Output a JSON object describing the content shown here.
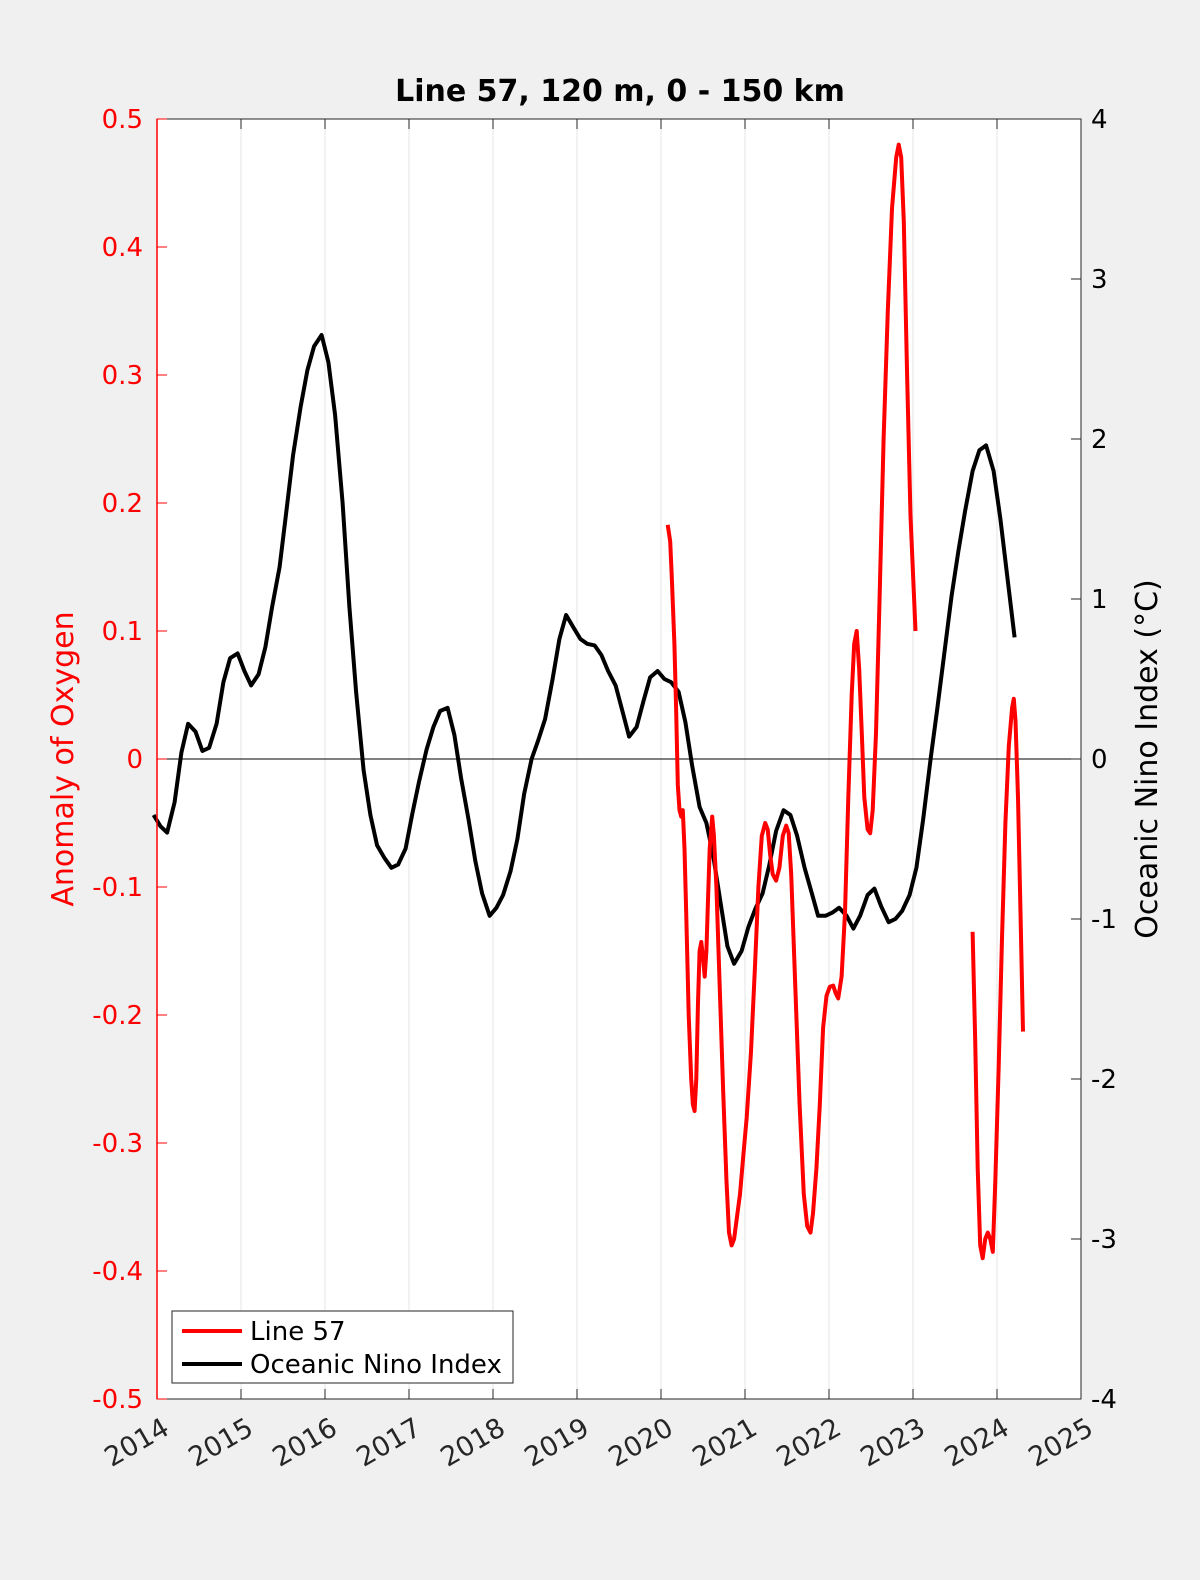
{
  "chart_data": {
    "type": "line",
    "title": "Line 57, 120 m, 0 - 150 km",
    "xlabel": "",
    "xlim": [
      2014,
      2025
    ],
    "xticks": [
      2014,
      2015,
      2016,
      2017,
      2018,
      2019,
      2020,
      2021,
      2022,
      2023,
      2024,
      2025
    ],
    "xtick_labels": [
      "2014",
      "2015",
      "2016",
      "2017",
      "2018",
      "2019",
      "2020",
      "2021",
      "2022",
      "2023",
      "2024",
      "2025"
    ],
    "ylabel_left": "Anomaly of Oxygen",
    "ylim_left": [
      -0.5,
      0.5
    ],
    "yticks_left": [
      -0.5,
      -0.4,
      -0.3,
      -0.2,
      -0.1,
      0,
      0.1,
      0.2,
      0.3,
      0.4,
      0.5
    ],
    "ytick_labels_left": [
      "-0.5",
      "-0.4",
      "-0.3",
      "-0.2",
      "-0.1",
      "0",
      "0.1",
      "0.2",
      "0.3",
      "0.4",
      "0.5"
    ],
    "ylabel_right": "Oceanic Nino Index (°C)",
    "ylim_right": [
      -4,
      4
    ],
    "yticks_right": [
      -4,
      -3,
      -2,
      -1,
      0,
      1,
      2,
      3,
      4
    ],
    "ytick_labels_right": [
      "-4",
      "-3",
      "-2",
      "-1",
      "0",
      "1",
      "2",
      "3",
      "4"
    ],
    "grid_x": true,
    "zero_line": true,
    "legend_position": "bottom-left",
    "series": [
      {
        "name": "Line 57",
        "axis": "left",
        "color": "#ff0000",
        "segments": [
          [
            [
              2020.08,
              0.183
            ],
            [
              2020.11,
              0.17
            ],
            [
              2020.13,
              0.14
            ],
            [
              2020.16,
              0.09
            ],
            [
              2020.18,
              0.04
            ],
            [
              2020.2,
              -0.02
            ],
            [
              2020.22,
              -0.04
            ],
            [
              2020.24,
              -0.045
            ],
            [
              2020.26,
              -0.04
            ],
            [
              2020.28,
              -0.07
            ],
            [
              2020.3,
              -0.12
            ],
            [
              2020.33,
              -0.2
            ],
            [
              2020.36,
              -0.25
            ],
            [
              2020.38,
              -0.27
            ],
            [
              2020.4,
              -0.275
            ],
            [
              2020.42,
              -0.25
            ],
            [
              2020.44,
              -0.19
            ],
            [
              2020.46,
              -0.15
            ],
            [
              2020.48,
              -0.143
            ],
            [
              2020.5,
              -0.155
            ],
            [
              2020.52,
              -0.17
            ],
            [
              2020.54,
              -0.15
            ],
            [
              2020.56,
              -0.11
            ],
            [
              2020.58,
              -0.07
            ],
            [
              2020.61,
              -0.045
            ],
            [
              2020.63,
              -0.06
            ],
            [
              2020.66,
              -0.1
            ],
            [
              2020.7,
              -0.18
            ],
            [
              2020.74,
              -0.26
            ],
            [
              2020.78,
              -0.33
            ],
            [
              2020.81,
              -0.37
            ],
            [
              2020.84,
              -0.38
            ],
            [
              2020.87,
              -0.375
            ],
            [
              2020.9,
              -0.36
            ],
            [
              2020.94,
              -0.34
            ],
            [
              2020.98,
              -0.31
            ],
            [
              2021.02,
              -0.28
            ],
            [
              2021.07,
              -0.23
            ],
            [
              2021.12,
              -0.16
            ],
            [
              2021.16,
              -0.1
            ],
            [
              2021.2,
              -0.06
            ],
            [
              2021.24,
              -0.05
            ],
            [
              2021.27,
              -0.055
            ],
            [
              2021.3,
              -0.075
            ],
            [
              2021.33,
              -0.09
            ],
            [
              2021.37,
              -0.095
            ],
            [
              2021.41,
              -0.085
            ],
            [
              2021.45,
              -0.06
            ],
            [
              2021.49,
              -0.052
            ],
            [
              2021.52,
              -0.058
            ],
            [
              2021.55,
              -0.09
            ],
            [
              2021.6,
              -0.18
            ],
            [
              2021.65,
              -0.27
            ],
            [
              2021.7,
              -0.34
            ],
            [
              2021.74,
              -0.365
            ],
            [
              2021.78,
              -0.37
            ],
            [
              2021.81,
              -0.355
            ],
            [
              2021.85,
              -0.32
            ],
            [
              2021.89,
              -0.27
            ],
            [
              2021.93,
              -0.21
            ],
            [
              2021.97,
              -0.185
            ],
            [
              2022.01,
              -0.178
            ],
            [
              2022.05,
              -0.177
            ],
            [
              2022.08,
              -0.183
            ],
            [
              2022.11,
              -0.187
            ],
            [
              2022.15,
              -0.17
            ],
            [
              2022.19,
              -0.12
            ],
            [
              2022.23,
              -0.03
            ],
            [
              2022.27,
              0.05
            ],
            [
              2022.3,
              0.09
            ],
            [
              2022.33,
              0.1
            ],
            [
              2022.36,
              0.07
            ],
            [
              2022.39,
              0.02
            ],
            [
              2022.42,
              -0.03
            ],
            [
              2022.46,
              -0.055
            ],
            [
              2022.49,
              -0.058
            ],
            [
              2022.52,
              -0.04
            ],
            [
              2022.56,
              0.02
            ],
            [
              2022.6,
              0.12
            ],
            [
              2022.65,
              0.25
            ],
            [
              2022.7,
              0.35
            ],
            [
              2022.75,
              0.43
            ],
            [
              2022.8,
              0.47
            ],
            [
              2022.83,
              0.48
            ],
            [
              2022.86,
              0.47
            ],
            [
              2022.89,
              0.42
            ],
            [
              2022.93,
              0.3
            ],
            [
              2022.97,
              0.19
            ],
            [
              2023.03,
              0.1
            ]
          ],
          [
            [
              2023.71,
              -0.135
            ],
            [
              2023.74,
              -0.22
            ],
            [
              2023.77,
              -0.32
            ],
            [
              2023.8,
              -0.38
            ],
            [
              2023.83,
              -0.39
            ],
            [
              2023.86,
              -0.375
            ],
            [
              2023.89,
              -0.37
            ],
            [
              2023.92,
              -0.375
            ],
            [
              2023.95,
              -0.385
            ],
            [
              2023.98,
              -0.33
            ],
            [
              2024.02,
              -0.24
            ],
            [
              2024.06,
              -0.14
            ],
            [
              2024.1,
              -0.05
            ],
            [
              2024.14,
              0.01
            ],
            [
              2024.18,
              0.04
            ],
            [
              2024.2,
              0.047
            ],
            [
              2024.22,
              0.03
            ],
            [
              2024.25,
              -0.03
            ],
            [
              2024.28,
              -0.12
            ],
            [
              2024.31,
              -0.213
            ]
          ]
        ]
      },
      {
        "name": "Oceanic Nino Index",
        "axis": "right",
        "color": "#000000",
        "segments": [
          [
            [
              2013.96,
              -0.35
            ],
            [
              2014.04,
              -0.42
            ],
            [
              2014.12,
              -0.46
            ],
            [
              2014.21,
              -0.27
            ],
            [
              2014.29,
              0.04
            ],
            [
              2014.37,
              0.22
            ],
            [
              2014.46,
              0.17
            ],
            [
              2014.54,
              0.05
            ],
            [
              2014.62,
              0.07
            ],
            [
              2014.71,
              0.22
            ],
            [
              2014.79,
              0.48
            ],
            [
              2014.87,
              0.63
            ],
            [
              2014.96,
              0.66
            ],
            [
              2015.04,
              0.55
            ],
            [
              2015.12,
              0.46
            ],
            [
              2015.21,
              0.53
            ],
            [
              2015.29,
              0.7
            ],
            [
              2015.37,
              0.95
            ],
            [
              2015.46,
              1.2
            ],
            [
              2015.54,
              1.55
            ],
            [
              2015.62,
              1.9
            ],
            [
              2015.71,
              2.2
            ],
            [
              2015.79,
              2.43
            ],
            [
              2015.87,
              2.58
            ],
            [
              2015.96,
              2.65
            ],
            [
              2016.04,
              2.48
            ],
            [
              2016.12,
              2.15
            ],
            [
              2016.21,
              1.6
            ],
            [
              2016.29,
              0.95
            ],
            [
              2016.37,
              0.42
            ],
            [
              2016.46,
              -0.07
            ],
            [
              2016.54,
              -0.35
            ],
            [
              2016.62,
              -0.54
            ],
            [
              2016.71,
              -0.62
            ],
            [
              2016.79,
              -0.68
            ],
            [
              2016.87,
              -0.66
            ],
            [
              2016.96,
              -0.56
            ],
            [
              2017.04,
              -0.34
            ],
            [
              2017.12,
              -0.14
            ],
            [
              2017.21,
              0.06
            ],
            [
              2017.29,
              0.2
            ],
            [
              2017.37,
              0.3
            ],
            [
              2017.46,
              0.32
            ],
            [
              2017.54,
              0.15
            ],
            [
              2017.62,
              -0.12
            ],
            [
              2017.71,
              -0.38
            ],
            [
              2017.79,
              -0.64
            ],
            [
              2017.87,
              -0.84
            ],
            [
              2017.96,
              -0.98
            ],
            [
              2018.04,
              -0.93
            ],
            [
              2018.12,
              -0.85
            ],
            [
              2018.21,
              -0.7
            ],
            [
              2018.29,
              -0.5
            ],
            [
              2018.37,
              -0.22
            ],
            [
              2018.46,
              0
            ],
            [
              2018.54,
              0.12
            ],
            [
              2018.62,
              0.25
            ],
            [
              2018.71,
              0.5
            ],
            [
              2018.79,
              0.75
            ],
            [
              2018.87,
              0.9
            ],
            [
              2018.96,
              0.82
            ],
            [
              2019.04,
              0.75
            ],
            [
              2019.12,
              0.72
            ],
            [
              2019.21,
              0.71
            ],
            [
              2019.29,
              0.65
            ],
            [
              2019.37,
              0.55
            ],
            [
              2019.46,
              0.46
            ],
            [
              2019.54,
              0.3
            ],
            [
              2019.62,
              0.14
            ],
            [
              2019.71,
              0.2
            ],
            [
              2019.79,
              0.36
            ],
            [
              2019.87,
              0.51
            ],
            [
              2019.96,
              0.55
            ],
            [
              2020.04,
              0.5
            ],
            [
              2020.12,
              0.48
            ],
            [
              2020.21,
              0.42
            ],
            [
              2020.29,
              0.23
            ],
            [
              2020.37,
              -0.04
            ],
            [
              2020.46,
              -0.3
            ],
            [
              2020.54,
              -0.4
            ],
            [
              2020.62,
              -0.6
            ],
            [
              2020.71,
              -0.9
            ],
            [
              2020.79,
              -1.17
            ],
            [
              2020.87,
              -1.28
            ],
            [
              2020.96,
              -1.2
            ],
            [
              2021.04,
              -1.05
            ],
            [
              2021.12,
              -0.94
            ],
            [
              2021.21,
              -0.84
            ],
            [
              2021.29,
              -0.66
            ],
            [
              2021.37,
              -0.45
            ],
            [
              2021.46,
              -0.32
            ],
            [
              2021.54,
              -0.35
            ],
            [
              2021.62,
              -0.48
            ],
            [
              2021.71,
              -0.68
            ],
            [
              2021.79,
              -0.83
            ],
            [
              2021.87,
              -0.98
            ],
            [
              2021.96,
              -0.98
            ],
            [
              2022.04,
              -0.96
            ],
            [
              2022.12,
              -0.93
            ],
            [
              2022.21,
              -0.98
            ],
            [
              2022.29,
              -1.06
            ],
            [
              2022.37,
              -0.98
            ],
            [
              2022.46,
              -0.85
            ],
            [
              2022.54,
              -0.81
            ],
            [
              2022.62,
              -0.92
            ],
            [
              2022.71,
              -1.02
            ],
            [
              2022.79,
              -1.0
            ],
            [
              2022.87,
              -0.95
            ],
            [
              2022.96,
              -0.85
            ],
            [
              2023.04,
              -0.68
            ],
            [
              2023.12,
              -0.38
            ],
            [
              2023.21,
              0.0
            ],
            [
              2023.29,
              0.32
            ],
            [
              2023.37,
              0.65
            ],
            [
              2023.46,
              1.02
            ],
            [
              2023.54,
              1.3
            ],
            [
              2023.62,
              1.55
            ],
            [
              2023.71,
              1.8
            ],
            [
              2023.79,
              1.93
            ],
            [
              2023.87,
              1.96
            ],
            [
              2023.96,
              1.8
            ],
            [
              2024.04,
              1.5
            ],
            [
              2024.12,
              1.15
            ],
            [
              2024.21,
              0.76
            ]
          ]
        ]
      }
    ]
  },
  "colors": {
    "figure_background": "#f0f0f0",
    "axes_background": "#ffffff",
    "left_axis": "#ff0000",
    "right_axis": "#000000",
    "grid": "#e6e6e6"
  }
}
